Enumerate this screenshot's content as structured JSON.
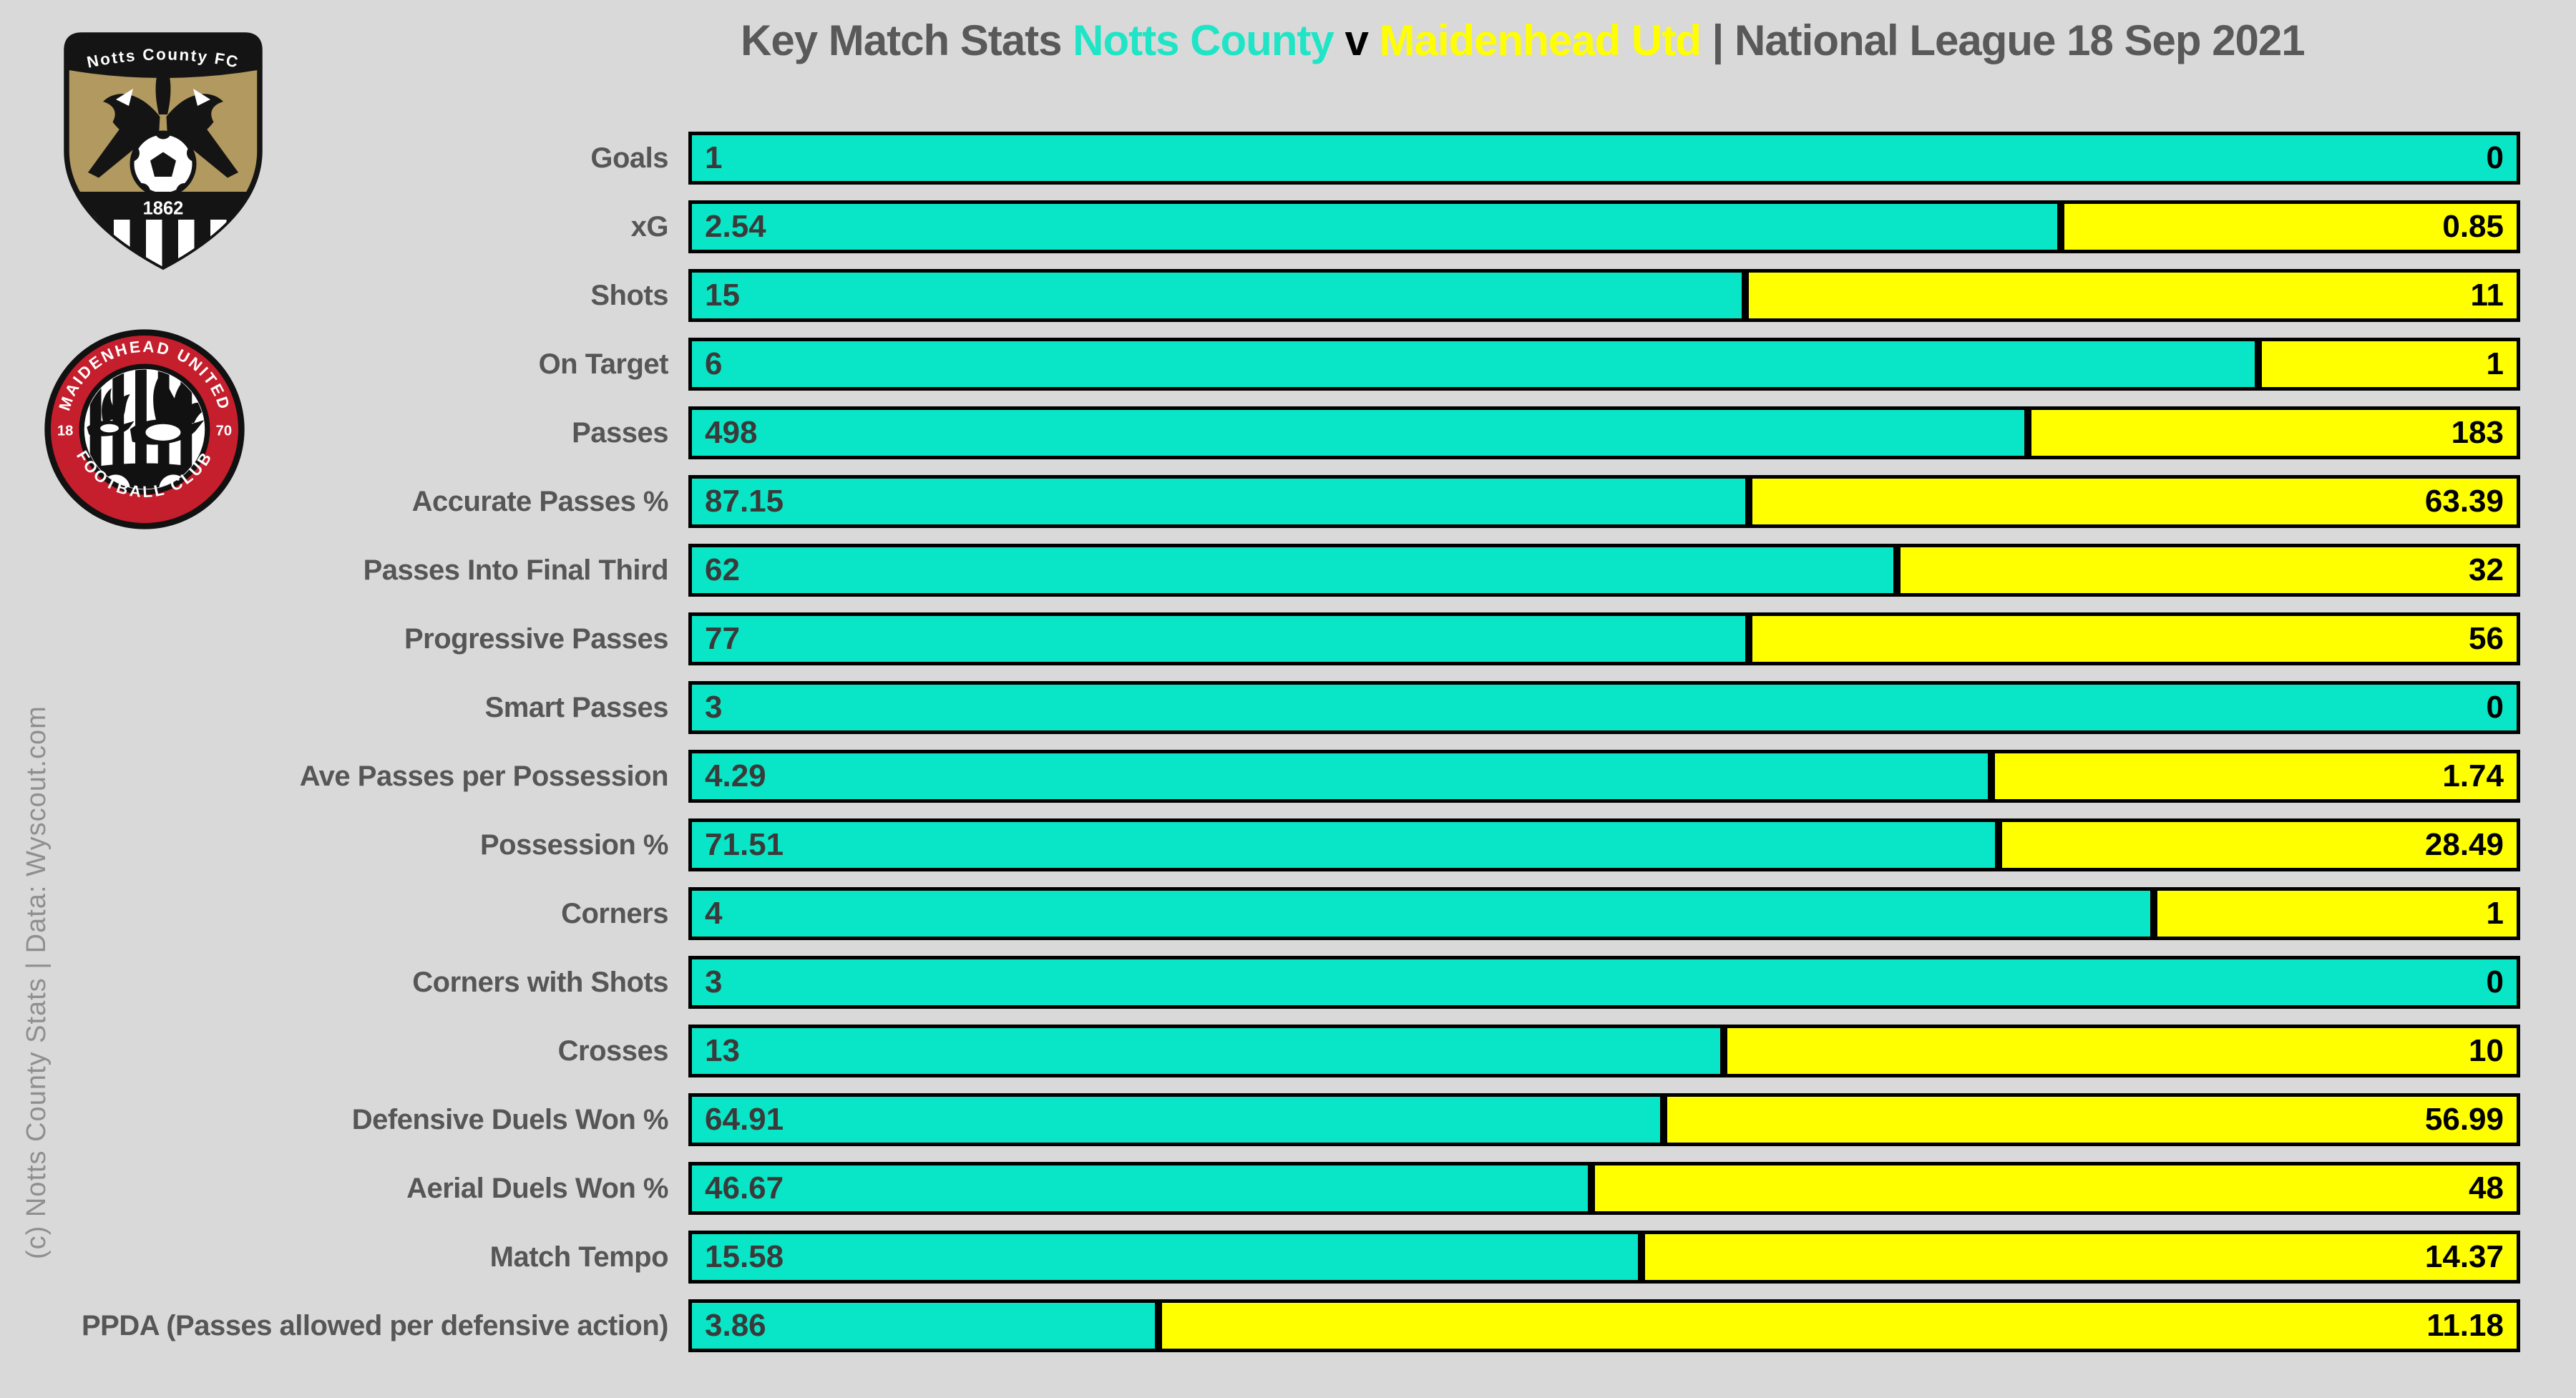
{
  "title": {
    "prefix": "Key Match Stats ",
    "home_team": "Notts County",
    "separator": " v ",
    "away_team": "Maidenhead Utd",
    "suffix": " | National League 18 Sep 2021"
  },
  "credit": "(c) Notts County Stats | Data: Wyscout.com",
  "colors": {
    "background": "#D9D9D9",
    "home_bar": "#09E6C7",
    "away_bar": "#FFFF00",
    "home_title": "#1FE5C6",
    "bar_border": "#000000",
    "label_text": "#565656",
    "title_text": "#595959",
    "notts_gold": "#B1995F",
    "maidenhead_red": "#C51E2D"
  },
  "logos": {
    "notts": {
      "name": "Notts County FC crest",
      "banner": "Notts County FC",
      "year": "1862"
    },
    "maidenhead": {
      "name": "Maidenhead United crest",
      "arc_top": "MAIDENHEAD UNITED",
      "arc_bottom": "FOOTBALL CLUB",
      "year_left": "18",
      "year_right": "70"
    }
  },
  "chart_data": {
    "type": "bar",
    "subtype": "horizontal-100pct-stacked",
    "title": "Key Match Stats Notts County v Maidenhead Utd | National League 18 Sep 2021",
    "grid": false,
    "legend_position": "none",
    "categories": [
      "Goals",
      "xG",
      "Shots",
      "On Target",
      "Passes",
      "Accurate Passes %",
      "Passes Into Final Third",
      "Progressive Passes",
      "Smart Passes",
      "Ave Passes per Possession",
      "Possession %",
      "Corners",
      "Corners with Shots",
      "Crosses",
      "Defensive Duels Won %",
      "Aerial Duels Won %",
      "Match Tempo",
      "PPDA (Passes allowed per defensive action)"
    ],
    "series": [
      {
        "name": "Notts County",
        "color": "#09E6C7",
        "values": [
          1,
          2.54,
          15,
          6,
          498,
          87.15,
          62,
          77,
          3,
          4.29,
          71.51,
          4,
          3,
          13,
          64.91,
          46.67,
          15.58,
          3.86
        ]
      },
      {
        "name": "Maidenhead Utd",
        "color": "#FFFF00",
        "values": [
          0,
          0.85,
          11,
          1,
          183,
          63.39,
          32,
          56,
          0,
          1.74,
          28.49,
          1,
          0,
          10,
          56.99,
          48,
          14.37,
          11.18
        ]
      }
    ]
  }
}
